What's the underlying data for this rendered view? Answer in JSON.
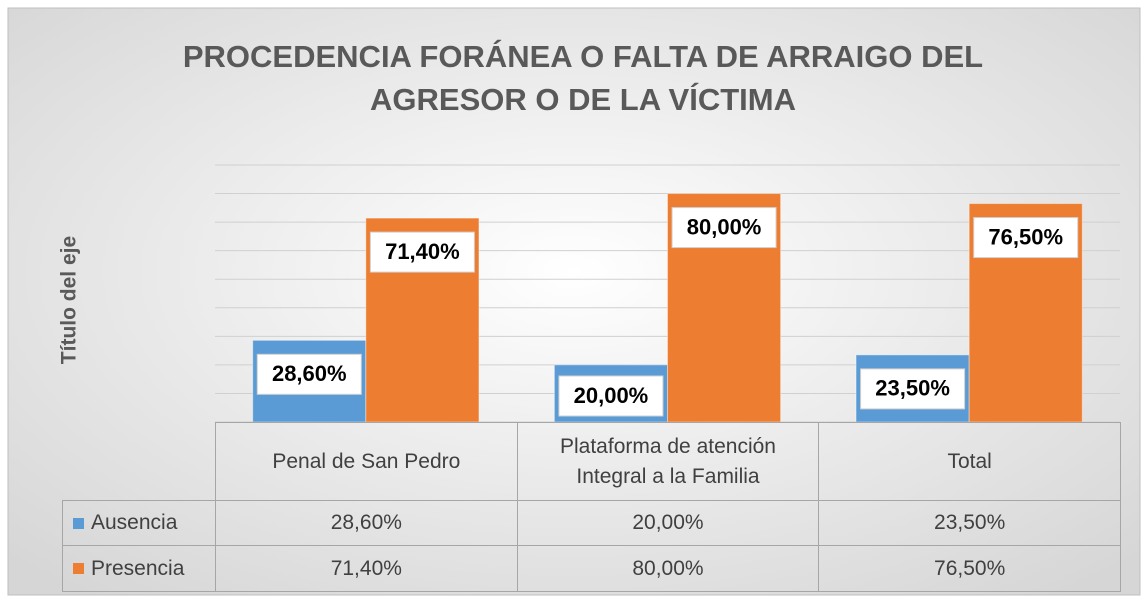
{
  "chart_data": {
    "type": "bar",
    "title": "PROCEDENCIA FORÁNEA O FALTA DE ARRAIGO DEL AGRESOR O DE LA VÍCTIMA",
    "y_axis_label": "Título del eje",
    "categories": [
      "Penal de San Pedro",
      "Plataforma de atención Integral a la Familia",
      "Total"
    ],
    "series": [
      {
        "name": "Ausencia",
        "color": "#5b9bd5",
        "values": [
          28.6,
          20,
          23.5
        ],
        "value_labels": [
          "28,60%",
          "20,00%",
          "23,50%"
        ]
      },
      {
        "name": "Presencia",
        "color": "#ed7d31",
        "values": [
          71.4,
          80,
          76.5
        ],
        "value_labels": [
          "71,40%",
          "80,00%",
          "76,50%"
        ]
      }
    ],
    "ylim": [
      0,
      90
    ],
    "yticks": [
      0,
      10,
      20,
      30,
      40,
      50,
      60,
      70,
      80,
      90
    ],
    "grid": true,
    "data_table": true
  }
}
